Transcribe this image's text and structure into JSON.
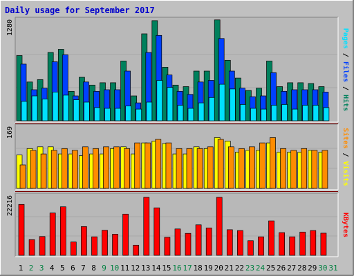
{
  "title": "Daily usage for September 2017",
  "colors": {
    "frame_bg": "#c0c0c0",
    "panel_bg": "#b8b8b8",
    "border_dark": "#808080",
    "border_light": "#ffffff",
    "title": "#0000cc",
    "label": "#000000",
    "hits": "#00805c",
    "files": "#0040ff",
    "pages": "#00e0ff",
    "visits": "#ffff00",
    "sites": "#ff8c00",
    "kbytes": "#ff0000",
    "weekday_label": "#000000",
    "weekend_label": "#008040",
    "separator": "#7a0000"
  },
  "chart_data": [
    {
      "type": "bar",
      "panel": "hits",
      "ylabel_parts": [
        {
          "text": "Pages",
          "color_key": "pages"
        },
        {
          "text": " / ",
          "color_key": "label"
        },
        {
          "text": "Files",
          "color_key": "files"
        },
        {
          "text": " / ",
          "color_key": "label"
        },
        {
          "text": "Hits",
          "color_key": "hits"
        }
      ],
      "ymax_label": "1280",
      "ymax": 1280,
      "series": [
        {
          "name": "Hits",
          "color_key": "hits",
          "values": [
            840,
            500,
            530,
            880,
            920,
            380,
            560,
            460,
            490,
            490,
            770,
            320,
            1120,
            1290,
            690,
            460,
            440,
            640,
            640,
            1300,
            780,
            550,
            390,
            420,
            770,
            440,
            490,
            490,
            480,
            440
          ]
        },
        {
          "name": "Files",
          "color_key": "files",
          "values": [
            730,
            400,
            420,
            760,
            850,
            320,
            500,
            380,
            400,
            400,
            640,
            230,
            880,
            1100,
            590,
            380,
            340,
            500,
            520,
            1060,
            640,
            420,
            310,
            320,
            620,
            380,
            400,
            400,
            400,
            370
          ]
        },
        {
          "name": "Pages",
          "color_key": "pages",
          "values": [
            250,
            320,
            280,
            370,
            330,
            270,
            240,
            170,
            160,
            160,
            190,
            150,
            240,
            520,
            430,
            200,
            160,
            230,
            300,
            470,
            410,
            210,
            160,
            150,
            200,
            210,
            150,
            200,
            200,
            170
          ]
        }
      ]
    },
    {
      "type": "bar",
      "panel": "visits",
      "ylabel_parts": [
        {
          "text": "Sites",
          "color_key": "sites"
        },
        {
          "text": " / ",
          "color_key": "label"
        },
        {
          "text": "Visits",
          "color_key": "visits"
        }
      ],
      "ymax_label": "169",
      "ymax": 169,
      "series": [
        {
          "name": "Visits",
          "color_key": "visits",
          "values": [
            94,
            112,
            117,
            117,
            97,
            97,
            92,
            97,
            97,
            112,
            117,
            97,
            128,
            133,
            126,
            97,
            97,
            117,
            112,
            143,
            133,
            102,
            107,
            107,
            128,
            102,
            102,
            102,
            107,
            102
          ]
        },
        {
          "name": "Sites",
          "color_key": "sites",
          "values": [
            66,
            107,
            97,
            107,
            112,
            107,
            117,
            112,
            117,
            117,
            112,
            128,
            128,
            138,
            128,
            112,
            112,
            112,
            117,
            138,
            117,
            112,
            117,
            128,
            143,
            112,
            107,
            112,
            107,
            107
          ]
        }
      ]
    },
    {
      "type": "bar",
      "panel": "kbytes",
      "ylabel_parts": [
        {
          "text": "KBytes",
          "color_key": "kbytes"
        }
      ],
      "ymax_label": "22216",
      "ymax": 22216,
      "series": [
        {
          "name": "KBytes",
          "color_key": "kbytes",
          "values": [
            19500,
            6000,
            7200,
            16200,
            18600,
            5100,
            11000,
            7100,
            9600,
            8100,
            15800,
            3900,
            22216,
            18200,
            6900,
            10100,
            8400,
            11700,
            10500,
            22216,
            9800,
            9500,
            5600,
            7100,
            13200,
            8700,
            7100,
            8900,
            9500,
            8500
          ]
        }
      ]
    }
  ],
  "day_labels": [
    {
      "text": "1",
      "weekend": false
    },
    {
      "text": "2",
      "weekend": true
    },
    {
      "text": "3",
      "weekend": true
    },
    {
      "text": "4",
      "weekend": false
    },
    {
      "text": "5",
      "weekend": false
    },
    {
      "text": "6",
      "weekend": false
    },
    {
      "text": "7",
      "weekend": false
    },
    {
      "text": "8",
      "weekend": false
    },
    {
      "text": "9",
      "weekend": true
    },
    {
      "text": "10",
      "weekend": true
    },
    {
      "text": "11",
      "weekend": false
    },
    {
      "text": "12",
      "weekend": false
    },
    {
      "text": "13",
      "weekend": false
    },
    {
      "text": "14",
      "weekend": false
    },
    {
      "text": "15",
      "weekend": false
    },
    {
      "text": "16",
      "weekend": true
    },
    {
      "text": "17",
      "weekend": true
    },
    {
      "text": "18",
      "weekend": false
    },
    {
      "text": "19",
      "weekend": false
    },
    {
      "text": "20",
      "weekend": false
    },
    {
      "text": "21",
      "weekend": false
    },
    {
      "text": "22",
      "weekend": false
    },
    {
      "text": "23",
      "weekend": true
    },
    {
      "text": "24",
      "weekend": true
    },
    {
      "text": "25",
      "weekend": false
    },
    {
      "text": "26",
      "weekend": false
    },
    {
      "text": "27",
      "weekend": false
    },
    {
      "text": "28",
      "weekend": false
    },
    {
      "text": "29",
      "weekend": false
    },
    {
      "text": "30",
      "weekend": true
    },
    {
      "text": "31",
      "weekend": true
    }
  ]
}
